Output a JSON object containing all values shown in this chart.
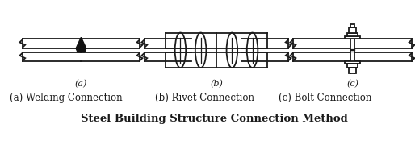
{
  "title": "Steel Building Structure Connection Method",
  "subtitle_a": "(a) Welding Connection",
  "subtitle_b": "(b) Rivet Connection",
  "subtitle_c": "(c) Bolt Connection",
  "label_a": "(a)",
  "label_b": "(b)",
  "label_c": "(c)",
  "bg_color": "#ffffff",
  "line_color": "#1a1a1a",
  "fill_color": "#111111",
  "lw": 1.3
}
